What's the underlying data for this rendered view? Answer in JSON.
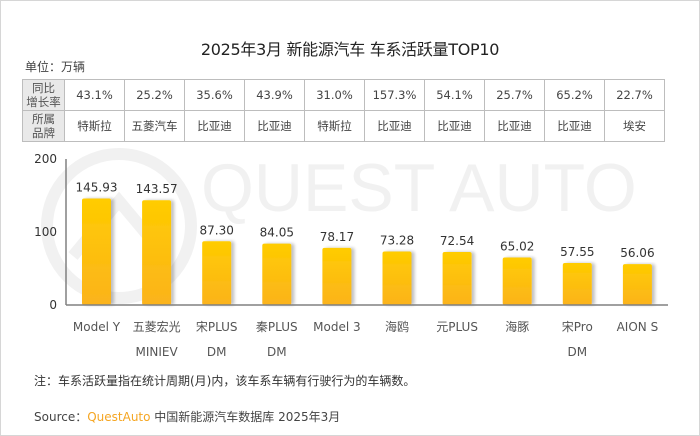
{
  "title": "2025年3月 新能源汽车 车系活跃量TOP10",
  "unit": "单位：万辆",
  "watermark_text": "QUEST AUTO",
  "colors": {
    "bar_top": "#FFCC00",
    "bar_bottom": "#FBB31C",
    "brand": "#F5A623",
    "axis": "#808080"
  },
  "table": {
    "row_headers": [
      [
        "同比",
        "增长率"
      ],
      [
        "所属",
        "品牌"
      ]
    ],
    "growth": [
      "43.1%",
      "25.2%",
      "35.6%",
      "43.9%",
      "31.0%",
      "157.3%",
      "54.1%",
      "25.7%",
      "65.2%",
      "22.7%"
    ],
    "brand": [
      "特斯拉",
      "五菱汽车",
      "比亚迪",
      "比亚迪",
      "特斯拉",
      "比亚迪",
      "比亚迪",
      "比亚迪",
      "比亚迪",
      "埃安"
    ]
  },
  "chart_data": {
    "type": "bar",
    "title": "2025年3月 新能源汽车 车系活跃量TOP10",
    "xlabel": "",
    "ylabel": "单位：万辆",
    "ylim": [
      0,
      200
    ],
    "yticks": [
      "0",
      "100",
      "200"
    ],
    "grid": false,
    "categories": [
      [
        "Model Y"
      ],
      [
        "五菱宏光",
        "MINIEV"
      ],
      [
        "宋PLUS",
        "DM"
      ],
      [
        "秦PLUS",
        "DM"
      ],
      [
        "Model 3"
      ],
      [
        "海鸥"
      ],
      [
        "元PLUS"
      ],
      [
        "海豚"
      ],
      [
        "宋Pro",
        "DM"
      ],
      [
        "AION S"
      ]
    ],
    "values": [
      145.93,
      143.57,
      87.3,
      84.05,
      78.17,
      73.28,
      72.54,
      65.02,
      57.55,
      56.06
    ],
    "value_labels": [
      "145.93",
      "143.57",
      "87.30",
      "84.05",
      "78.17",
      "73.28",
      "72.54",
      "65.02",
      "57.55",
      "56.06"
    ]
  },
  "note": "注：车系活跃量指在统计周期(月)内，该车系车辆有行驶行为的车辆数。",
  "source": {
    "label": "Source：",
    "brand": "QuestAuto",
    "text": " 中国新能源汽车数据库 2025年3月"
  }
}
